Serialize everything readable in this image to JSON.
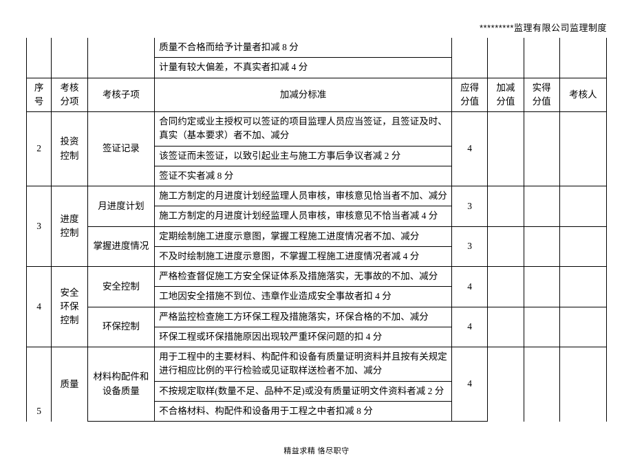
{
  "doc_header": "*********监理有限公司监理制度",
  "footer": "精益求精  恪尽职守",
  "headers": {
    "seq": "序号",
    "category": "考核分项",
    "subitem": "考核子项",
    "criteria": "加减分标准",
    "base_score": "应得分值",
    "adj_score": "加减分值",
    "actual_score": "实得分值",
    "evaluator": "考核人"
  },
  "rows": {
    "pre1": "质量不合格而给予计量者扣减 8 分",
    "pre2": "计量有较大偏差，不真实者扣减 4 分",
    "r2_seq": "2",
    "r2_cat": "投资控制",
    "r2_sub": "签证记录",
    "r2_c1": "合同约定或业主授权可以签证的项目监理人员应当签证，且签证及时、真实（基本要求）者不加、减分",
    "r2_c2": "该签证而未签证，以致引起业主与施工方事后争议者减 2 分",
    "r2_c3": "签证不实者减 8 分",
    "r2_score": "4",
    "r3_seq": "3",
    "r3_cat": "进度控制",
    "r3_sub1": "月进度计划",
    "r3_c1": "施工方制定的月进度计划经监理人员审核，审核意见恰当者不加、减分",
    "r3_c2": "施工方制定的月进度计划经监理人员审核，审核意见不恰当者减 4 分",
    "r3_score1": "3",
    "r3_sub2": "掌握进度情况",
    "r3_c3": "定期绘制施工进度示意图，掌握工程施工进度情况者不加、减分",
    "r3_c4": "不及时绘制施工进度示意图，不掌握工程施工进度情况者减 4 分",
    "r3_score2": "3",
    "r4_seq": "4",
    "r4_cat": "安全环保控制",
    "r4_sub1": "安全控制",
    "r4_c1": "严格检查督促施工方安全保证体系及措施落实，无事故的不加、减分",
    "r4_c2": "工地因安全措施不到位、违章作业造成安全事故者扣 4 分",
    "r4_score1": "4",
    "r4_sub2": "环保控制",
    "r4_c3": "严格监控检查施工方环保工程及措施落实，环保合格的不加、减分",
    "r4_c4": "环保工程或环保措施原因出现较严重环保问题的扣 4 分",
    "r4_score2": "4",
    "r5_seq": "5",
    "r5_cat": "质量",
    "r5_sub": "材料构配件和设备质量",
    "r5_c1": "用于工程中的主要材料、构配件和设备有质量证明资料并且按有关规定进行相应比例的平行检验或见证取样送检者不加、减分",
    "r5_c2": "不按规定取样(数量不足、品种不足)或没有质量证明文件资料者减 2 分",
    "r5_c3": "不合格材料、构配件和设备用于工程之中者扣减 8 分",
    "r5_score": "4"
  }
}
